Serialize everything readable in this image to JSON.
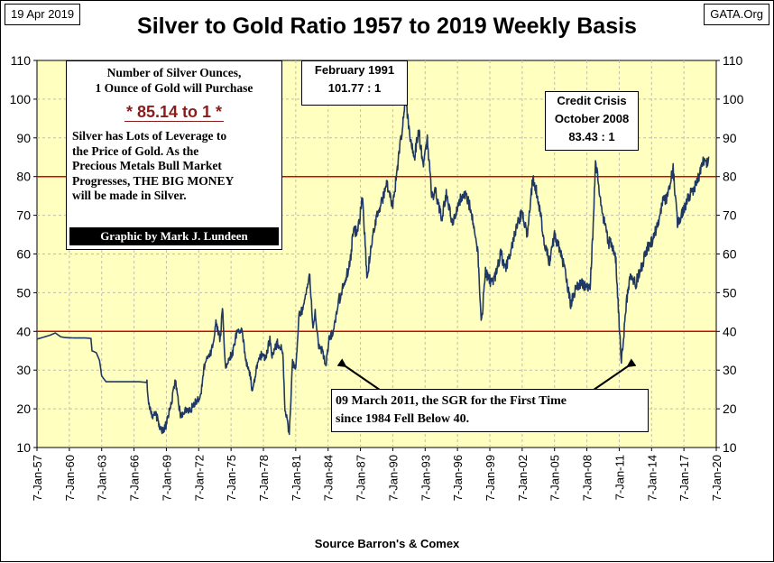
{
  "header": {
    "date": "19 Apr 2019",
    "title": "Silver to Gold Ratio 1957 to 2019 Weekly Basis",
    "source_tag": "GATA.Org"
  },
  "footer": {
    "source": "Source Barron's & Comex"
  },
  "info_box": {
    "heading_line1": "Number of Silver Ounces,",
    "heading_line2": "1 Ounce of Gold will Purchase",
    "ratio": "* 85.14 to 1 *",
    "body_line1": "Silver has Lots of Leverage to",
    "body_line2": "the Price of Gold.  As the",
    "body_line3": "Precious Metals Bull Market",
    "body_line4": "Progresses,  THE BIG MONEY",
    "body_line5": "will be made in Silver.",
    "credit": "Graphic by Mark J. Lundeen"
  },
  "annotations": {
    "feb1991_line1": "February 1991",
    "feb1991_line2": "101.77 : 1",
    "credit_line1": "Credit Crisis",
    "credit_line2": "October 2008",
    "credit_line3": "83.43 : 1",
    "mar2011_line1": "09 March 2011, the SGR for the First Time",
    "mar2011_line2": "since 1984 Fell Below 40."
  },
  "colors": {
    "plot_bg": "#ffffc0",
    "line": "#1f3864",
    "reference": "#e00000"
  },
  "chart_data": {
    "type": "line",
    "title": "Silver to Gold Ratio 1957 to 2019 Weekly Basis",
    "xlabel": "",
    "ylabel": "",
    "xlim": [
      1957.0,
      2020.0
    ],
    "ylim": [
      10,
      110
    ],
    "yticks": [
      10,
      20,
      30,
      40,
      50,
      60,
      70,
      80,
      90,
      100,
      110
    ],
    "xticks": [
      {
        "label": "7-Jan-57",
        "value": 1957
      },
      {
        "label": "7-Jan-60",
        "value": 1960
      },
      {
        "label": "7-Jan-63",
        "value": 1963
      },
      {
        "label": "7-Jan-66",
        "value": 1966
      },
      {
        "label": "7-Jan-69",
        "value": 1969
      },
      {
        "label": "7-Jan-72",
        "value": 1972
      },
      {
        "label": "7-Jan-75",
        "value": 1975
      },
      {
        "label": "7-Jan-78",
        "value": 1978
      },
      {
        "label": "7-Jan-81",
        "value": 1981
      },
      {
        "label": "7-Jan-84",
        "value": 1984
      },
      {
        "label": "7-Jan-87",
        "value": 1987
      },
      {
        "label": "7-Jan-90",
        "value": 1990
      },
      {
        "label": "7-Jan-93",
        "value": 1993
      },
      {
        "label": "7-Jan-96",
        "value": 1996
      },
      {
        "label": "7-Jan-99",
        "value": 1999
      },
      {
        "label": "7-Jan-02",
        "value": 2002
      },
      {
        "label": "7-Jan-05",
        "value": 2005
      },
      {
        "label": "7-Jan-08",
        "value": 2008
      },
      {
        "label": "7-Jan-11",
        "value": 2011
      },
      {
        "label": "7-Jan-14",
        "value": 2014
      },
      {
        "label": "7-Jan-17",
        "value": 2017
      },
      {
        "label": "7-Jan-20",
        "value": 2020
      }
    ],
    "reference_lines": [
      80,
      40
    ],
    "series": [
      {
        "name": "Silver to Gold Ratio",
        "points": [
          [
            1957.0,
            38
          ],
          [
            1957.6,
            38.5
          ],
          [
            1958.2,
            39
          ],
          [
            1958.7,
            39.6
          ],
          [
            1959.2,
            38.6
          ],
          [
            1959.6,
            38.4
          ],
          [
            1960.5,
            38.3
          ],
          [
            1961.5,
            38.3
          ],
          [
            1962.0,
            38.2
          ],
          [
            1962.1,
            35
          ],
          [
            1962.5,
            34.5
          ],
          [
            1962.8,
            32.5
          ],
          [
            1963.0,
            28.5
          ],
          [
            1963.4,
            27
          ],
          [
            1964.5,
            27
          ],
          [
            1965.5,
            27
          ],
          [
            1966.5,
            27
          ],
          [
            1967.2,
            26.8
          ],
          [
            1967.4,
            21
          ],
          [
            1967.7,
            18
          ],
          [
            1968.0,
            19
          ],
          [
            1968.3,
            16
          ],
          [
            1968.6,
            14
          ],
          [
            1969.0,
            16
          ],
          [
            1969.5,
            22
          ],
          [
            1969.8,
            27
          ],
          [
            1970.0,
            25
          ],
          [
            1970.3,
            18
          ],
          [
            1970.8,
            20
          ],
          [
            1971.3,
            20
          ],
          [
            1971.8,
            22
          ],
          [
            1972.2,
            24
          ],
          [
            1972.5,
            31
          ],
          [
            1972.8,
            33
          ],
          [
            1973.2,
            35
          ],
          [
            1973.6,
            42
          ],
          [
            1974.0,
            38
          ],
          [
            1974.2,
            46
          ],
          [
            1974.5,
            30
          ],
          [
            1974.8,
            33
          ],
          [
            1975.2,
            35
          ],
          [
            1975.6,
            41
          ],
          [
            1976.0,
            40
          ],
          [
            1976.4,
            32
          ],
          [
            1976.8,
            28
          ],
          [
            1977.0,
            24
          ],
          [
            1977.3,
            30
          ],
          [
            1977.8,
            34
          ],
          [
            1978.2,
            33
          ],
          [
            1978.6,
            38
          ],
          [
            1978.8,
            34
          ],
          [
            1979.3,
            37
          ],
          [
            1979.8,
            35
          ],
          [
            1980.0,
            20
          ],
          [
            1980.2,
            17
          ],
          [
            1980.4,
            13
          ],
          [
            1980.7,
            32
          ],
          [
            1981.0,
            30
          ],
          [
            1981.3,
            44
          ],
          [
            1981.7,
            46
          ],
          [
            1982.0,
            50
          ],
          [
            1982.3,
            55
          ],
          [
            1982.6,
            40
          ],
          [
            1982.8,
            46
          ],
          [
            1983.1,
            36
          ],
          [
            1983.5,
            35
          ],
          [
            1983.8,
            31
          ],
          [
            1984.1,
            38
          ],
          [
            1984.5,
            40
          ],
          [
            1985.0,
            48
          ],
          [
            1985.5,
            52
          ],
          [
            1986.0,
            57
          ],
          [
            1986.3,
            65
          ],
          [
            1986.8,
            67
          ],
          [
            1987.2,
            75
          ],
          [
            1987.6,
            54
          ],
          [
            1988.0,
            62
          ],
          [
            1988.5,
            70
          ],
          [
            1989.0,
            74
          ],
          [
            1989.5,
            78
          ],
          [
            1990.0,
            72
          ],
          [
            1990.5,
            84
          ],
          [
            1991.0,
            95
          ],
          [
            1991.15,
            101.77
          ],
          [
            1991.5,
            92
          ],
          [
            1992.0,
            85
          ],
          [
            1992.4,
            92
          ],
          [
            1992.8,
            83
          ],
          [
            1993.2,
            90
          ],
          [
            1993.6,
            75
          ],
          [
            1994.0,
            76
          ],
          [
            1994.5,
            69
          ],
          [
            1995.0,
            76
          ],
          [
            1995.5,
            68
          ],
          [
            1996.0,
            72
          ],
          [
            1996.5,
            76
          ],
          [
            1997.0,
            74
          ],
          [
            1997.5,
            67
          ],
          [
            1997.9,
            60
          ],
          [
            1998.2,
            42
          ],
          [
            1998.6,
            55
          ],
          [
            1999.0,
            53
          ],
          [
            1999.5,
            54
          ],
          [
            2000.0,
            60
          ],
          [
            2000.5,
            56
          ],
          [
            2001.0,
            62
          ],
          [
            2001.5,
            67
          ],
          [
            2002.0,
            71
          ],
          [
            2002.5,
            65
          ],
          [
            2003.0,
            80
          ],
          [
            2003.5,
            74
          ],
          [
            2004.0,
            64
          ],
          [
            2004.5,
            58
          ],
          [
            2005.0,
            65
          ],
          [
            2005.5,
            61
          ],
          [
            2006.0,
            55
          ],
          [
            2006.5,
            47
          ],
          [
            2007.0,
            51
          ],
          [
            2007.5,
            53
          ],
          [
            2008.0,
            51
          ],
          [
            2008.3,
            52
          ],
          [
            2008.55,
            65
          ],
          [
            2008.8,
            83.43
          ],
          [
            2009.1,
            78
          ],
          [
            2009.5,
            70
          ],
          [
            2010.0,
            63
          ],
          [
            2010.4,
            62
          ],
          [
            2010.7,
            58
          ],
          [
            2011.0,
            42
          ],
          [
            2011.2,
            31.5
          ],
          [
            2011.4,
            38
          ],
          [
            2011.7,
            48
          ],
          [
            2012.0,
            55
          ],
          [
            2012.5,
            52
          ],
          [
            2013.0,
            56
          ],
          [
            2013.5,
            61
          ],
          [
            2014.0,
            63
          ],
          [
            2014.5,
            67
          ],
          [
            2015.0,
            73
          ],
          [
            2015.5,
            75
          ],
          [
            2016.0,
            82
          ],
          [
            2016.4,
            68
          ],
          [
            2016.8,
            70
          ],
          [
            2017.2,
            73
          ],
          [
            2017.7,
            76
          ],
          [
            2018.2,
            78
          ],
          [
            2018.7,
            84
          ],
          [
            2019.0,
            83
          ],
          [
            2019.3,
            85.14
          ]
        ]
      }
    ]
  }
}
